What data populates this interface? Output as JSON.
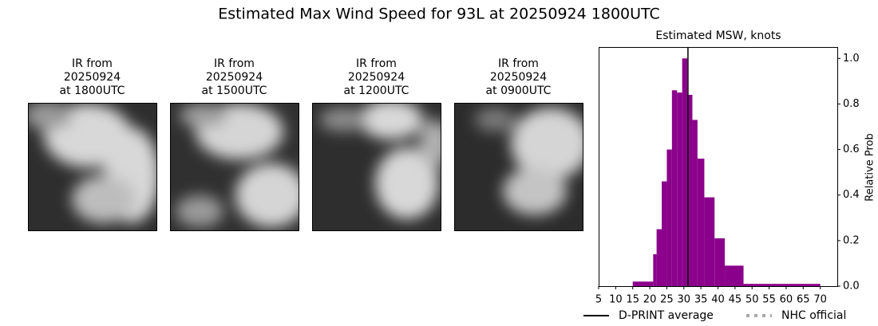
{
  "chart_data": {
    "type": "histogram",
    "title": "Estimated Max Wind Speed for 93L at 20250924 1800UTC",
    "panels": [
      {
        "caption": [
          "IR from",
          "20250924",
          "at 1800UTC"
        ]
      },
      {
        "caption": [
          "IR from",
          "20250924",
          "at 1500UTC"
        ]
      },
      {
        "caption": [
          "IR from",
          "20250924",
          "at 1200UTC"
        ]
      },
      {
        "caption": [
          "IR from",
          "20250924",
          "at 0900UTC"
        ]
      }
    ],
    "subtitle": "Estimated MSW, knots",
    "y_label": "Relative Prob",
    "bins": [
      15,
      21,
      22,
      23.5,
      25,
      26.5,
      28,
      29.5,
      31,
      32.5,
      34,
      36,
      39,
      42,
      47.5,
      70
    ],
    "counts": [
      0.02,
      0.14,
      0.25,
      0.46,
      0.6,
      0.86,
      0.85,
      1.0,
      0.84,
      0.73,
      0.56,
      0.39,
      0.21,
      0.09,
      0.01
    ],
    "color": "#8b008b",
    "average": 31.2,
    "legend": [
      {
        "name": "D-PRINT average",
        "color": "#000000",
        "style": "solid"
      },
      {
        "name": "NHC official",
        "color": "#a9a9a9",
        "style": "dotted"
      }
    ],
    "xlim": [
      5,
      75
    ],
    "xticks": [
      5,
      10,
      15,
      20,
      25,
      30,
      35,
      40,
      45,
      50,
      55,
      60,
      65,
      70
    ],
    "ylim": [
      0,
      1.05
    ],
    "yticks": [
      {
        "value": 0,
        "label": "0.0"
      },
      {
        "value": 0.2,
        "label": "0.2"
      },
      {
        "value": 0.4,
        "label": "0.4"
      },
      {
        "value": 0.6,
        "label": "0.6"
      },
      {
        "value": 0.8,
        "label": "0.8"
      },
      {
        "value": 1.0,
        "label": "1.0"
      }
    ]
  }
}
